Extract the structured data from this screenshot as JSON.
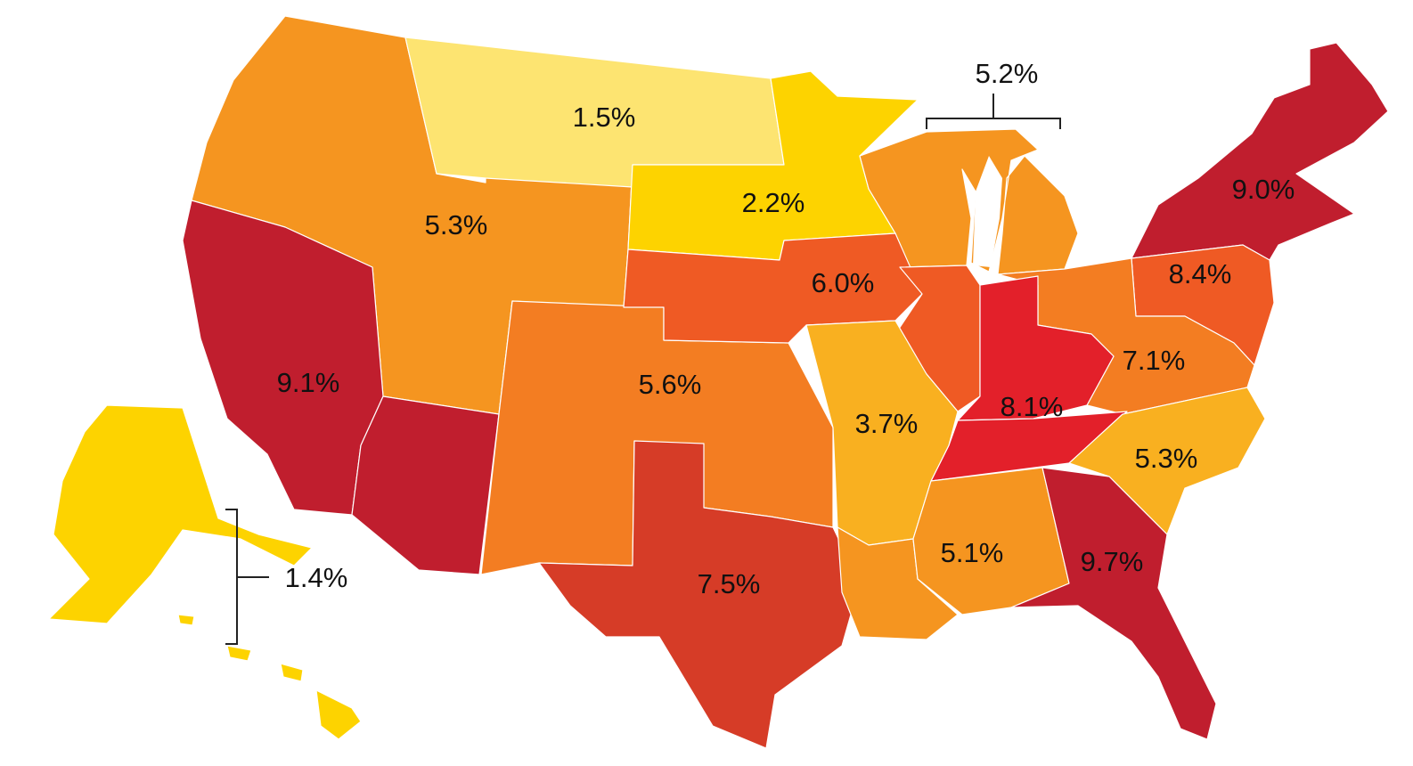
{
  "colors": {
    "pale_yellow": "#fde471",
    "yellow": "#fdd300",
    "light_orange": "#f9b020",
    "orange": "#f59520",
    "dark_orange": "#f37d22",
    "red_orange": "#ef5a24",
    "brick": "#d63c27",
    "red": "#e3202a",
    "crimson": "#c01e2e",
    "water": "#ffffff"
  },
  "regions": [
    {
      "id": "pacific-northwest",
      "label": "5.3%",
      "fill": "orange"
    },
    {
      "id": "northern-plains",
      "label": "1.5%",
      "fill": "pale_yellow"
    },
    {
      "id": "minnesota-south-dakota",
      "label": "2.2%",
      "fill": "yellow"
    },
    {
      "id": "wisconsin-michigan",
      "label": "5.2%",
      "fill": "orange"
    },
    {
      "id": "new-england-new-york",
      "label": "9.0%",
      "fill": "crimson"
    },
    {
      "id": "california-nevada",
      "label": "9.1%",
      "fill": "crimson"
    },
    {
      "id": "central-plains",
      "label": "5.6%",
      "fill": "dark_orange"
    },
    {
      "id": "iowa-nebraska",
      "label": "6.0%",
      "fill": "red_orange"
    },
    {
      "id": "pennsylvania-new-jersey",
      "label": "8.4%",
      "fill": "red_orange"
    },
    {
      "id": "virginia-west-virginia",
      "label": "7.1%",
      "fill": "dark_orange"
    },
    {
      "id": "indiana-kentucky",
      "label": "8.1%",
      "fill": "red"
    },
    {
      "id": "missouri-arkansas",
      "label": "3.7%",
      "fill": "light_orange"
    },
    {
      "id": "carolinas",
      "label": "5.3%",
      "fill": "light_orange"
    },
    {
      "id": "texas",
      "label": "7.5%",
      "fill": "brick"
    },
    {
      "id": "deep-south",
      "label": "5.1%",
      "fill": "orange"
    },
    {
      "id": "georgia-florida",
      "label": "9.7%",
      "fill": "crimson"
    },
    {
      "id": "alaska-hawaii",
      "label": "1.4%",
      "fill": "yellow"
    }
  ]
}
